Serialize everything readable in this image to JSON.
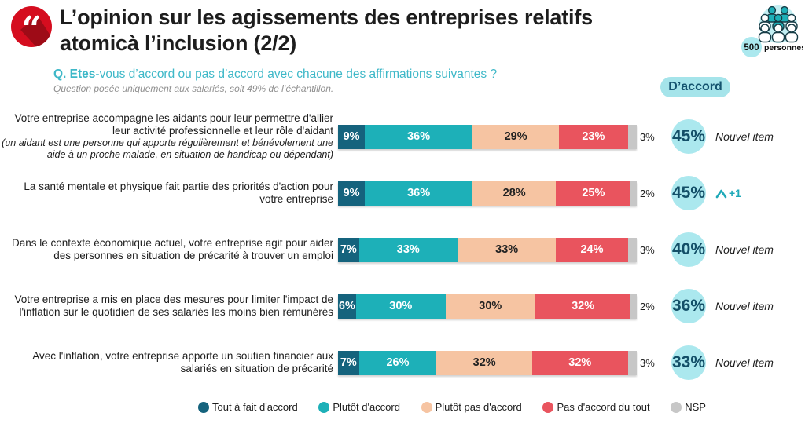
{
  "header": {
    "title_line1": "L’opinion sur les agissements des entreprises relatifs",
    "title_line2": "à l’inclusion (2/2)",
    "question_bold": "Q. Etes",
    "question_rest": "-vous d’accord ou pas d’accord avec chacune des affirmations suivantes ?",
    "question_note": "Question posée uniquement aux salariés, soit 49% de l’échantillon.",
    "sample_count": "500",
    "sample_unit": "personnes",
    "agree_badge": "D’accord"
  },
  "colors": {
    "accent_teal": "#1fa9b8",
    "light_teal_circle": "#abe8ee",
    "dark_teal_text": "#134f68",
    "question_teal": "#3eb8c8",
    "quote_red": "#d50d1f",
    "quote_red_shadow": "#9e0b17"
  },
  "chart_data": {
    "type": "bar",
    "stacked": true,
    "orientation": "horizontal",
    "title": "L’opinion sur les agissements des entreprises relatifs à l’inclusion (2/2)",
    "value_unit": "%",
    "xlim": [
      0,
      100
    ],
    "grid": false,
    "legend_position": "bottom",
    "series": [
      {
        "name": "Tout à fait d'accord",
        "color": "#15637d",
        "label_color": "#ffffff"
      },
      {
        "name": "Plutôt d'accord",
        "color": "#1db0b8",
        "label_color": "#ffffff"
      },
      {
        "name": "Plutôt pas d'accord",
        "color": "#f6c4a2",
        "label_color": "#222222"
      },
      {
        "name": "Pas d'accord du tout",
        "color": "#e9545e",
        "label_color": "#ffffff"
      },
      {
        "name": "NSP",
        "color": "#c7c7c7",
        "label_color": "#1c1c1c",
        "label_outside": true
      }
    ],
    "rows": [
      {
        "label": "Votre entreprise accompagne les aidants pour leur permettre d'allier leur activité professionnelle et leur rôle d'aidant",
        "note": "(un aidant est une personne qui apporte régulièrement et bénévolement une aide à un proche malade, en situation de handicap ou dépendant)",
        "values": [
          9,
          36,
          29,
          23,
          3
        ],
        "agree_total": "45%",
        "trend": "Nouvel item",
        "trend_type": "new"
      },
      {
        "label": "La santé mentale et physique fait partie des priorités d'action pour votre entreprise",
        "values": [
          9,
          36,
          28,
          25,
          2
        ],
        "agree_total": "45%",
        "trend": "+1",
        "trend_type": "up"
      },
      {
        "label": "Dans le contexte économique actuel, votre entreprise agit pour aider des personnes en situation de précarité à trouver un emploi",
        "values": [
          7,
          33,
          33,
          24,
          3
        ],
        "agree_total": "40%",
        "trend": "Nouvel item",
        "trend_type": "new"
      },
      {
        "label": "Votre entreprise a mis en place des mesures pour limiter l'impact de l'inflation sur le quotidien de ses salariés les moins bien rémunérés",
        "values": [
          6,
          30,
          30,
          32,
          2
        ],
        "agree_total": "36%",
        "trend": "Nouvel item",
        "trend_type": "new"
      },
      {
        "label": "Avec l'inflation, votre entreprise apporte un soutien financier aux salariés en situation de précarité",
        "values": [
          7,
          26,
          32,
          32,
          3
        ],
        "agree_total": "33%",
        "trend": "Nouvel item",
        "trend_type": "new"
      }
    ]
  }
}
